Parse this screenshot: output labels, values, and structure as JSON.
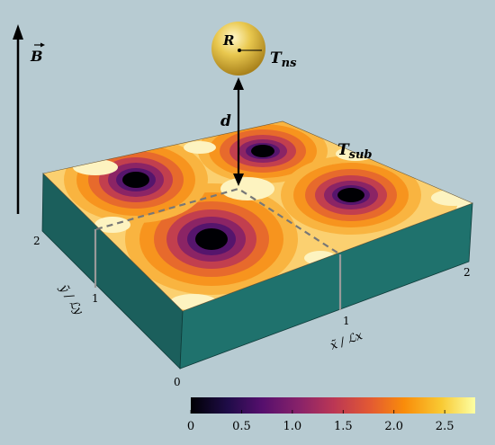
{
  "labels": {
    "b_field": "B",
    "sphere_radius": "R",
    "t_ns": "T",
    "t_ns_sub": "ns",
    "distance": "d",
    "t_sub": "T",
    "t_sub_sub": "sub",
    "x_axis": "x̃ / ℒx",
    "y_axis": "ỹ / ℒy"
  },
  "axis_ticks": {
    "x": [
      "1",
      "2"
    ],
    "y": [
      "1",
      "2"
    ],
    "origin": "0"
  },
  "colorbar": {
    "ticks": [
      "0",
      "0.5",
      "1.0",
      "1.5",
      "2.0",
      "2.5"
    ],
    "tick_values": [
      0,
      0.5,
      1.0,
      1.5,
      2.0,
      2.5
    ],
    "range": [
      0,
      2.8
    ],
    "colormap": "inferno"
  },
  "colors": {
    "background": "#b7cbd2",
    "slab_side": "#1d6e6a",
    "sphere": "#e5c24f"
  }
}
